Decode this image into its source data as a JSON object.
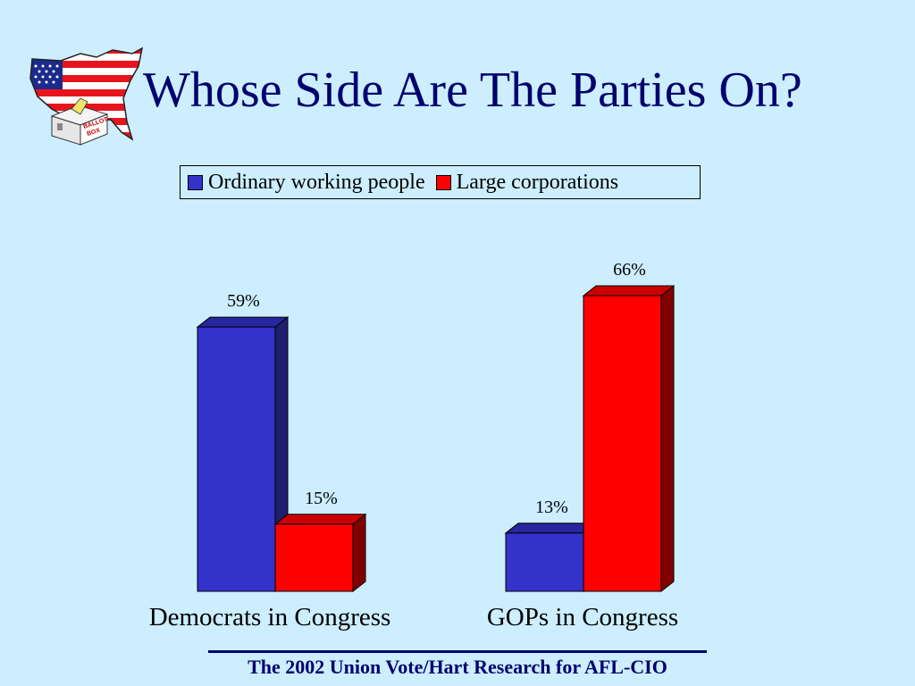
{
  "slide": {
    "title": "Whose Side Are The Parties On?",
    "footer": "The 2002 Union Vote/Hart Research for AFL-CIO",
    "logo_text": [
      "BALLOT",
      "BOX"
    ]
  },
  "colors": {
    "background": "#cceeff",
    "title": "#00006e",
    "series_workers": "#3333cc",
    "series_corporations": "#ff0000"
  },
  "chart_data": {
    "type": "bar",
    "categories": [
      "Democrats in Congress",
      "GOPs in Congress"
    ],
    "series": [
      {
        "name": "Ordinary working people",
        "values": [
          59,
          13
        ],
        "labels": [
          "59%",
          "13%"
        ]
      },
      {
        "name": "Large corporations",
        "values": [
          15,
          66
        ],
        "labels": [
          "15%",
          "66%"
        ]
      }
    ],
    "title": "",
    "xlabel": "",
    "ylabel": "",
    "ylim": [
      0,
      66
    ],
    "grid": false,
    "legend": "top",
    "style": "3d"
  }
}
